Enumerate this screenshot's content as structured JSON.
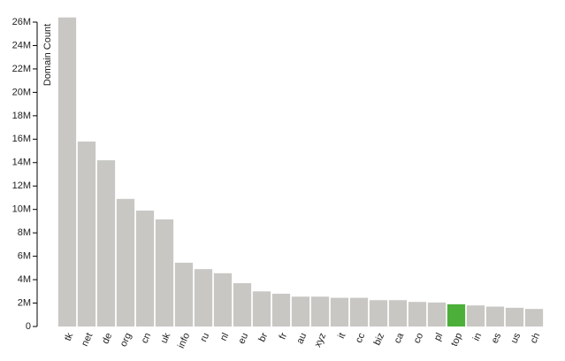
{
  "chart_data": {
    "type": "bar",
    "y_label": "Domain Count",
    "categories": [
      "tk",
      "net",
      "de",
      "org",
      "cn",
      "uk",
      "info",
      "ru",
      "nl",
      "eu",
      "br",
      "fr",
      "au",
      "xyz",
      "it",
      "cc",
      "biz",
      "ca",
      "co",
      "pl",
      "top",
      "in",
      "es",
      "us",
      "ch"
    ],
    "values": [
      26400000,
      15800000,
      14200000,
      10900000,
      9900000,
      9150000,
      5450000,
      4900000,
      4550000,
      3700000,
      3000000,
      2800000,
      2550000,
      2550000,
      2450000,
      2450000,
      2250000,
      2250000,
      2100000,
      2050000,
      1900000,
      1800000,
      1700000,
      1600000,
      1500000
    ],
    "colors": [
      "#c8c7c4",
      "#c8c7c4",
      "#c8c7c4",
      "#c8c7c4",
      "#c8c7c4",
      "#c8c7c4",
      "#c8c7c4",
      "#c8c7c4",
      "#c8c7c4",
      "#c8c7c4",
      "#c8c7c4",
      "#c8c7c4",
      "#c8c7c4",
      "#c8c7c4",
      "#c8c7c4",
      "#c8c7c4",
      "#c8c7c4",
      "#c8c7c4",
      "#c8c7c4",
      "#c8c7c4",
      "#4caf3a",
      "#c8c7c4",
      "#c8c7c4",
      "#c8c7c4",
      "#c8c7c4"
    ],
    "ylim": [
      0,
      26000000
    ],
    "yticks": [
      0,
      {
        "value": 2000000,
        "label": "2M"
      },
      {
        "value": 4000000,
        "label": "4M"
      },
      {
        "value": 6000000,
        "label": "6M"
      },
      {
        "value": 8000000,
        "label": "8M"
      },
      {
        "value": 10000000,
        "label": "10M"
      },
      {
        "value": 12000000,
        "label": "12M"
      },
      {
        "value": 14000000,
        "label": "14M"
      },
      {
        "value": 16000000,
        "label": "16M"
      },
      {
        "value": 18000000,
        "label": "18M"
      },
      {
        "value": 20000000,
        "label": "20M"
      },
      {
        "value": 22000000,
        "label": "22M"
      },
      {
        "value": 24000000,
        "label": "24M"
      },
      {
        "value": 26000000,
        "label": "26M"
      }
    ],
    "grid": false
  }
}
